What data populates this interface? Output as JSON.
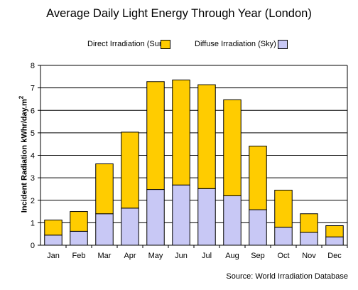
{
  "chart_data": {
    "type": "bar",
    "stacked": true,
    "title": "Average Daily Light Energy Through Year (London)",
    "ylabel": "Incident Radiation kWhr/day.m",
    "ylabel_superscript": "2",
    "xlabel": "",
    "ylim": [
      0,
      8
    ],
    "yticks": [
      "0",
      "1",
      "2",
      "3",
      "4",
      "5",
      "6",
      "7",
      "8"
    ],
    "grid": true,
    "legend_position": "top",
    "categories": [
      "Jan",
      "Feb",
      "Mar",
      "Apr",
      "May",
      "Jun",
      "Jul",
      "Aug",
      "Sep",
      "Oct",
      "Nov",
      "Dec"
    ],
    "series": [
      {
        "name": "Diffuse Irradiation (Sky)",
        "color": "#c8c8f5",
        "values": [
          0.45,
          0.62,
          1.4,
          1.65,
          2.48,
          2.68,
          2.52,
          2.2,
          1.58,
          0.8,
          0.57,
          0.37
        ]
      },
      {
        "name": "Direct Irradiation (Sun)",
        "color": "#ffcc00",
        "values": [
          0.67,
          0.88,
          2.22,
          3.38,
          4.8,
          4.67,
          4.62,
          4.27,
          2.83,
          1.65,
          0.83,
          0.5
        ]
      }
    ],
    "source": "Source: World Irradiation Database"
  }
}
